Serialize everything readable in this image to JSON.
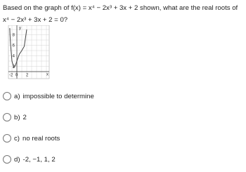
{
  "question": "Based on the graph of f(x) = x⁴ − 2x³ + 3x + 2 shown, what are the real roots of x⁴ − 2x³ + 3x + 2 = 0?",
  "graph": {
    "y_label": "y",
    "x_label": "x",
    "y_tick_labels": [
      "8",
      "6",
      "4",
      "2"
    ],
    "x_tick_labels": [
      "-2",
      "0",
      "2"
    ]
  },
  "options": [
    {
      "letter": "a)",
      "text": "impossible to determine"
    },
    {
      "letter": "b)",
      "text": "2"
    },
    {
      "letter": "c)",
      "text": "no real roots"
    },
    {
      "letter": "d)",
      "text": "-2, −1, 1, 2"
    }
  ]
}
